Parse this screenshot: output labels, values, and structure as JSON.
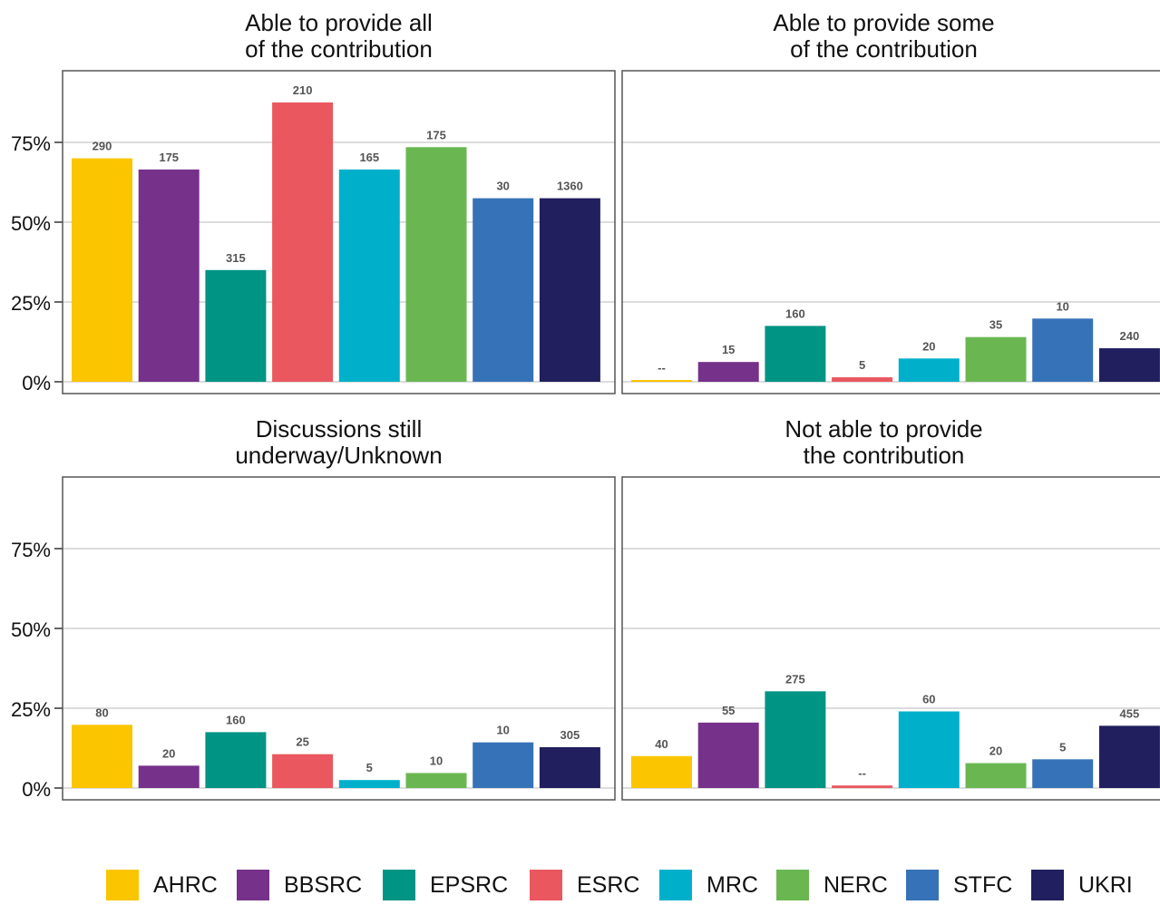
{
  "chart_data": {
    "type": "bar",
    "layout": "facet-2x2",
    "categories": [
      "AHRC",
      "BBSRC",
      "EPSRC",
      "ESRC",
      "MRC",
      "NERC",
      "STFC",
      "UKRI"
    ],
    "colors": [
      "#FBC500",
      "#76318A",
      "#009484",
      "#EA575F",
      "#00B0CA",
      "#6AB752",
      "#3672B7",
      "#211F5E"
    ],
    "y_ticks": [
      "0%",
      "25%",
      "50%",
      "75%"
    ],
    "ylim": [
      0,
      0.96
    ],
    "grid": true,
    "legend_position": "bottom",
    "panels": [
      {
        "title_lines": [
          "Able to provide all",
          "of the contribution"
        ],
        "values": [
          0.7,
          0.665,
          0.35,
          0.875,
          0.665,
          0.735,
          0.575,
          0.575
        ],
        "labels": [
          "290",
          "175",
          "315",
          "210",
          "165",
          "175",
          "30",
          "1360"
        ]
      },
      {
        "title_lines": [
          "Able to provide some",
          "of the contribution"
        ],
        "values": [
          0.003,
          0.062,
          0.175,
          0.014,
          0.073,
          0.14,
          0.198,
          0.105
        ],
        "labels": [
          "--",
          "15",
          "160",
          "5",
          "20",
          "35",
          "10",
          "240"
        ]
      },
      {
        "title_lines": [
          "Discussions still",
          "underway/Unknown"
        ],
        "values": [
          0.198,
          0.07,
          0.175,
          0.106,
          0.025,
          0.047,
          0.143,
          0.128
        ],
        "labels": [
          "80",
          "20",
          "160",
          "25",
          "5",
          "10",
          "10",
          "305"
        ]
      },
      {
        "title_lines": [
          "Not able to provide",
          "the contribution"
        ],
        "values": [
          0.1,
          0.205,
          0.303,
          0.008,
          0.24,
          0.078,
          0.09,
          0.195
        ],
        "labels": [
          "40",
          "55",
          "275",
          "--",
          "60",
          "20",
          "5",
          "455"
        ]
      }
    ]
  },
  "legend": [
    {
      "label": "AHRC",
      "color": "#FBC500"
    },
    {
      "label": "BBSRC",
      "color": "#76318A"
    },
    {
      "label": "EPSRC",
      "color": "#009484"
    },
    {
      "label": "ESRC",
      "color": "#EA575F"
    },
    {
      "label": "MRC",
      "color": "#00B0CA"
    },
    {
      "label": "NERC",
      "color": "#6AB752"
    },
    {
      "label": "STFC",
      "color": "#3672B7"
    },
    {
      "label": "UKRI",
      "color": "#211F5E"
    }
  ]
}
